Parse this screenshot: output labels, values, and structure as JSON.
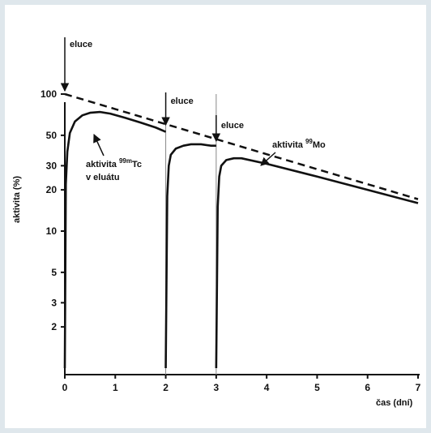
{
  "chart_data": {
    "type": "line",
    "xlabel": "čas (dní)",
    "ylabel": "aktivita (%)",
    "xlim": [
      0,
      7
    ],
    "ylim": [
      1,
      100
    ],
    "y_scale": "log",
    "x_ticks": [
      0,
      1,
      2,
      3,
      4,
      5,
      6,
      7
    ],
    "y_ticks": [
      100,
      50,
      30,
      20,
      10,
      5,
      3,
      2
    ],
    "grid": false,
    "series": [
      {
        "name": "aktivita 99Mo",
        "style": "dashed",
        "x": [
          0,
          1,
          2,
          3,
          4,
          5,
          6,
          7
        ],
        "y": [
          100,
          77.7,
          60.3,
          46.9,
          36.4,
          28.3,
          22.0,
          17.1
        ]
      },
      {
        "name": "aktivita 99mTc v eluátu",
        "style": "solid",
        "segments": [
          {
            "x": [
              0,
              0.02,
              0.05,
              0.1,
              0.2,
              0.35,
              0.5,
              0.7,
              0.9,
              1.2,
              1.5,
              1.8,
              2.0
            ],
            "y": [
              1,
              22,
              38,
              52,
              63,
              70,
              73,
              74,
              72,
              67,
              62,
              57,
              53
            ]
          },
          {
            "x": [
              2.0,
              2.03,
              2.06,
              2.1,
              2.2,
              2.35,
              2.5,
              2.7,
              2.9,
              3.0
            ],
            "y": [
              1,
              18,
              30,
              36,
              40,
              42,
              43,
              43,
              42,
              42
            ]
          },
          {
            "x": [
              3.0,
              3.03,
              3.06,
              3.1,
              3.2,
              3.35,
              3.5,
              4,
              5,
              6,
              7
            ],
            "y": [
              1,
              15,
              25,
              30,
              33,
              34,
              34,
              31,
              25,
              20,
              16
            ]
          }
        ]
      }
    ],
    "annotations": [
      {
        "text": "eluce",
        "x": 0
      },
      {
        "text": "eluce",
        "x": 2
      },
      {
        "text": "eluce",
        "x": 3
      },
      {
        "text_line1": "aktivita ",
        "sup": "99m",
        "text_line1b": "Tc",
        "text_line2": "v eluátu",
        "target": "aktivita 99mTc v eluátu"
      },
      {
        "text_line1": "aktivita ",
        "sup": "99",
        "text_line1b": "Mo",
        "target": "aktivita 99Mo"
      }
    ]
  }
}
